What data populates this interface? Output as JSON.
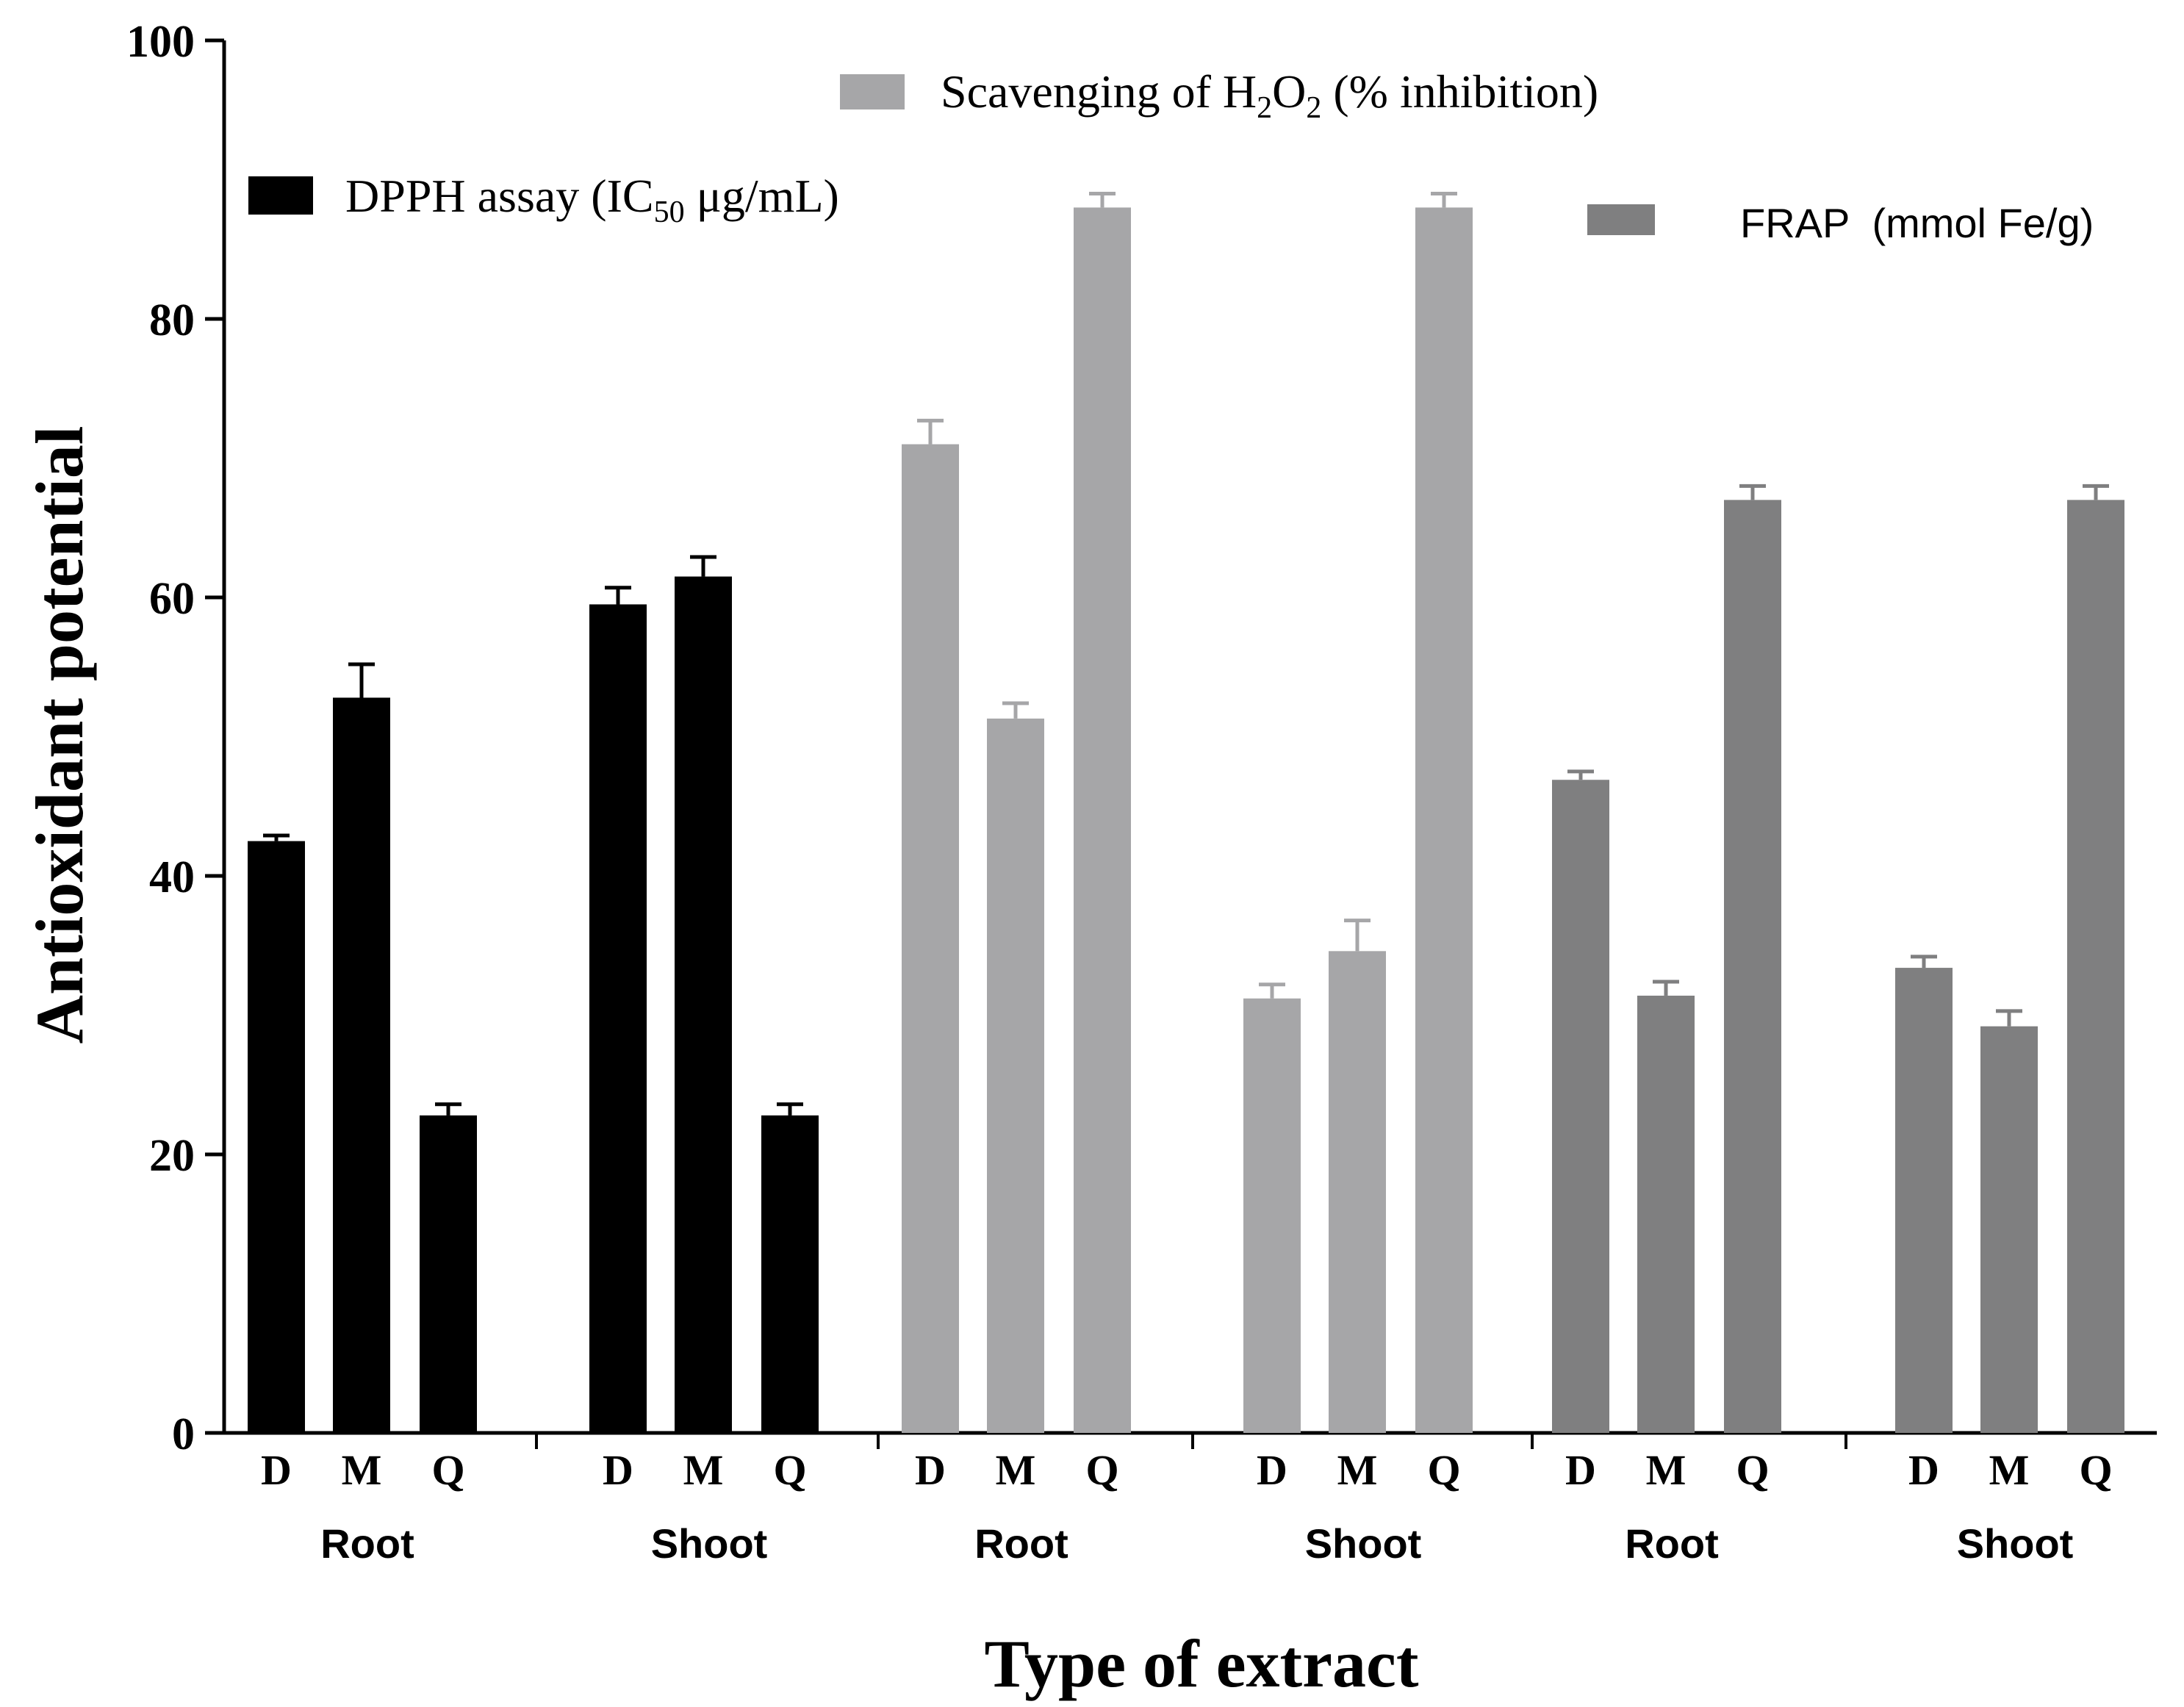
{
  "chart_data": {
    "type": "bar",
    "xlabel": "Type of extract",
    "ylabel": "Antioxidant potential",
    "ylim": [
      0,
      100
    ],
    "yticks": [
      "0",
      "20",
      "40",
      "60",
      "80",
      "100"
    ],
    "tick_labels": [
      "D",
      "M",
      "Q"
    ],
    "group_labels": [
      "Root",
      "Shoot",
      "Root",
      "Shoot",
      "Root",
      "Shoot"
    ],
    "series": [
      {
        "name": "DPPH assay (IC50 μg/mL)",
        "legend": {
          "pre": "DPPH assay (IC",
          "sub": "50",
          "post": " μg/mL)"
        },
        "color": "#000000",
        "groups": [
          "Root",
          "Shoot"
        ],
        "categories": [
          "D",
          "M",
          "Q",
          "D",
          "M",
          "Q"
        ],
        "values": [
          42.5,
          52.8,
          22.8,
          59.5,
          61.5,
          22.8
        ],
        "errors": [
          0.4,
          2.4,
          0.8,
          1.2,
          1.4,
          0.8
        ]
      },
      {
        "name": "Scavenging of H2O2 (% inhibition)",
        "legend": {
          "pre": "Scavenging of H",
          "sub1": "2",
          "mid": "O",
          "sub2": "2",
          "post": " (% inhibition)"
        },
        "color": "#a6a6a8",
        "groups": [
          "Root",
          "Shoot"
        ],
        "categories": [
          "D",
          "M",
          "Q",
          "D",
          "M",
          "Q"
        ],
        "values": [
          71.0,
          51.3,
          88.0,
          31.2,
          34.6,
          88.0
        ],
        "errors": [
          1.7,
          1.1,
          1.0,
          1.0,
          2.2,
          1.0
        ]
      },
      {
        "name": "FRAP (mmol Fe/g)",
        "legend": {
          "text": "FRAP  (mmol Fe/g)"
        },
        "color": "#7f7f80",
        "groups": [
          "Root",
          "Shoot"
        ],
        "categories": [
          "D",
          "M",
          "Q",
          "D",
          "M",
          "Q"
        ],
        "values": [
          46.9,
          31.4,
          67.0,
          33.4,
          29.2,
          67.0
        ],
        "errors": [
          0.6,
          1.0,
          1.0,
          0.8,
          1.1,
          1.0
        ]
      }
    ]
  }
}
